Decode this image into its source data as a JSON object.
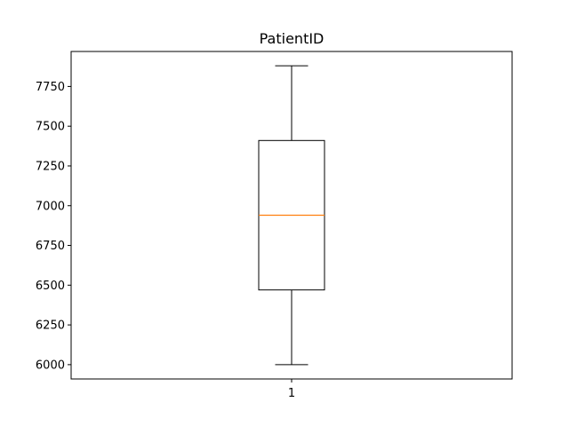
{
  "chart_data": {
    "type": "box",
    "title": "PatientID",
    "xlabel": "",
    "ylabel": "",
    "categories": [
      "1"
    ],
    "boxes": [
      {
        "label": "1",
        "whisker_low": 6000,
        "q1": 6470,
        "median": 6940,
        "q3": 7410,
        "whisker_high": 7880
      }
    ],
    "ylim": [
      5910,
      7970
    ],
    "yticks": [
      6000,
      6250,
      6500,
      6750,
      7000,
      7250,
      7500,
      7750
    ],
    "grid": false,
    "colors": {
      "box": "#000000",
      "median": "#ff7f0e",
      "axes": "#000000",
      "background": "#ffffff"
    }
  }
}
